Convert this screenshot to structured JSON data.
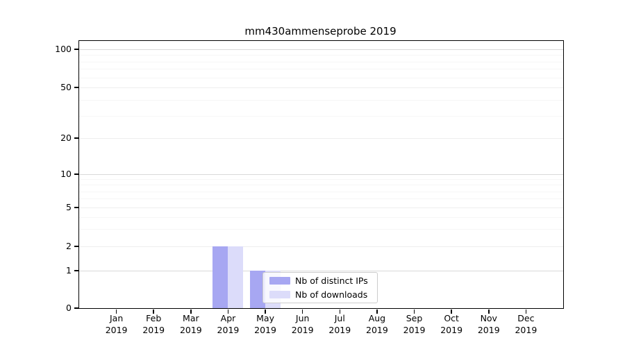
{
  "title": "mm430ammenseprobe 2019",
  "chart_data": {
    "type": "bar",
    "title": "mm430ammenseprobe 2019",
    "categories": [
      "Jan",
      "Feb",
      "Mar",
      "Apr",
      "May",
      "Jun",
      "Jul",
      "Aug",
      "Sep",
      "Oct",
      "Nov",
      "Dec"
    ],
    "x_year_line": "2019",
    "series": [
      {
        "name": "Nb of distinct IPs",
        "color": "#a7a7f2",
        "values": [
          0,
          0,
          0,
          2,
          1,
          0,
          0,
          0,
          0,
          0,
          0,
          0
        ]
      },
      {
        "name": "Nb of downloads",
        "color": "#dcdcfa",
        "values": [
          0,
          0,
          0,
          2,
          1,
          0,
          0,
          0,
          0,
          0,
          0,
          0
        ]
      }
    ],
    "yscale": "symlog",
    "ylim": [
      0,
      112
    ],
    "yticks": [
      0,
      1,
      2,
      5,
      10,
      20,
      50,
      100
    ],
    "ytick_decades": [
      1,
      10,
      100
    ],
    "yminor_ticks": [
      3,
      4,
      6,
      7,
      8,
      9,
      30,
      40,
      60,
      70,
      80,
      90
    ],
    "grid": "horizontal",
    "legend_position": "lower center-right inside plot"
  },
  "legend": {
    "items": [
      {
        "label": "Nb of distinct IPs",
        "color": "#a7a7f2"
      },
      {
        "label": "Nb of downloads",
        "color": "#dcdcfa"
      }
    ]
  }
}
